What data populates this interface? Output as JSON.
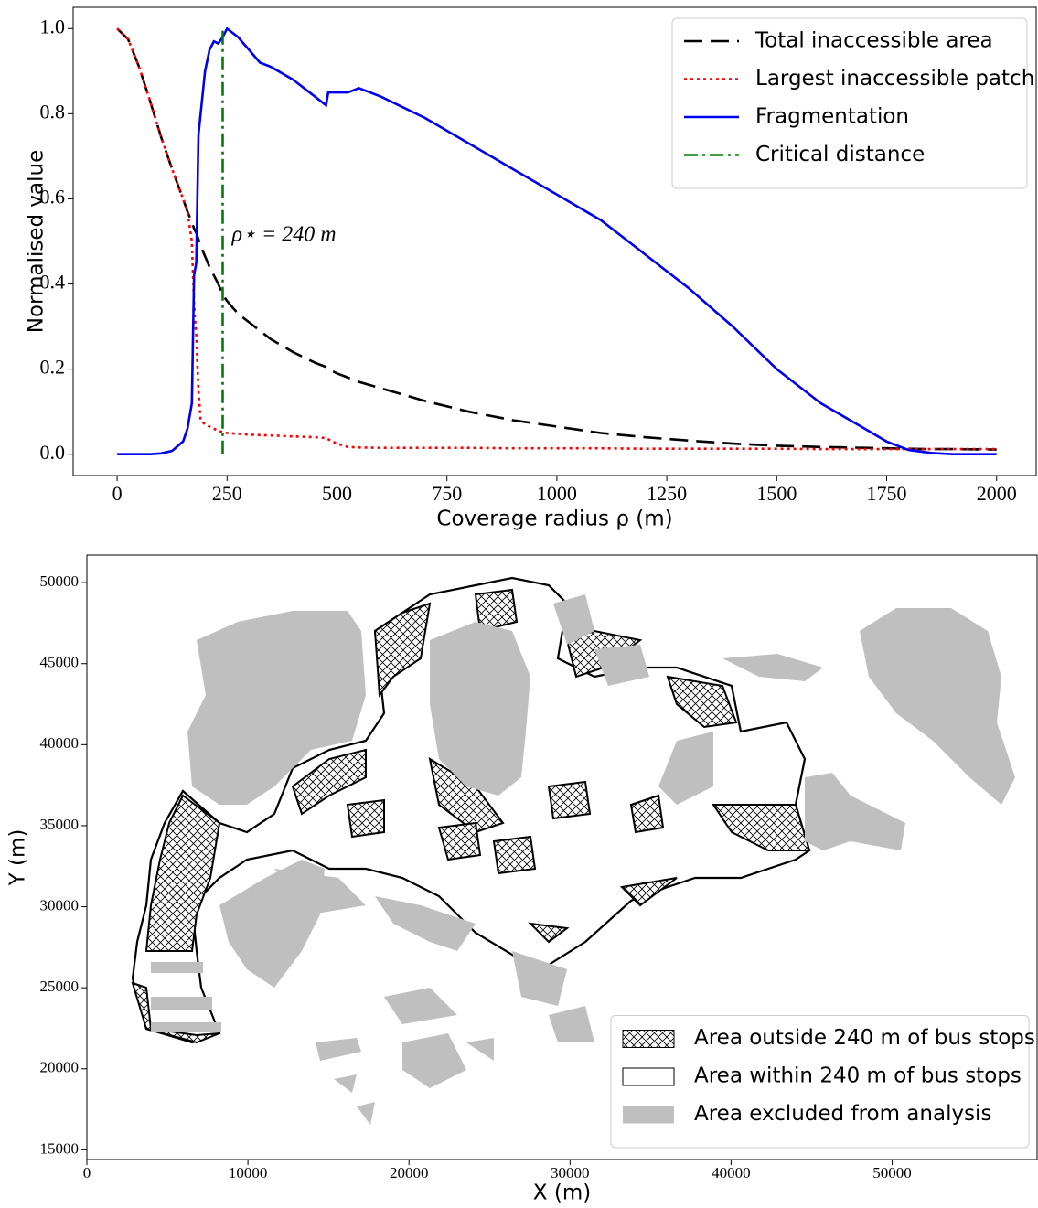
{
  "chart_data": [
    {
      "type": "line",
      "xlabel": "Coverage radius ρ (m)",
      "ylabel": "Normalised value",
      "xlim": [
        -100,
        2090
      ],
      "ylim": [
        -0.05,
        1.05
      ],
      "xticks": [
        0,
        250,
        500,
        750,
        1000,
        1250,
        1500,
        1750,
        2000
      ],
      "yticks": [
        {
          "value": 0,
          "label": "0.0"
        },
        {
          "value": 0.2,
          "label": "0.2"
        },
        {
          "value": 0.4,
          "label": "0.4"
        },
        {
          "value": 0.6,
          "label": "0.6"
        },
        {
          "value": 0.8,
          "label": "0.8"
        },
        {
          "value": 1.0,
          "label": "1.0"
        }
      ],
      "legend": "upper right",
      "annotation": "ρ⋆ = 240 m",
      "series": [
        {
          "name": "Total inaccessible area",
          "color": "#000000",
          "dash": "dashed",
          "x": [
            0,
            25,
            50,
            75,
            100,
            125,
            150,
            160,
            170,
            175,
            180,
            185,
            190,
            200,
            210,
            220,
            230,
            240,
            250,
            275,
            300,
            325,
            350,
            400,
            450,
            475,
            480,
            500,
            525,
            550,
            600,
            700,
            800,
            900,
            1000,
            1100,
            1200,
            1300,
            1400,
            1500,
            1600,
            1700,
            1750,
            1800,
            1850,
            1900,
            2000
          ],
          "values": [
            1.0,
            0.975,
            0.91,
            0.83,
            0.745,
            0.67,
            0.6,
            0.57,
            0.545,
            0.53,
            0.52,
            0.505,
            0.49,
            0.465,
            0.44,
            0.42,
            0.4,
            0.375,
            0.36,
            0.33,
            0.31,
            0.29,
            0.27,
            0.24,
            0.215,
            0.205,
            0.2,
            0.19,
            0.18,
            0.17,
            0.155,
            0.125,
            0.1,
            0.08,
            0.065,
            0.05,
            0.04,
            0.032,
            0.025,
            0.02,
            0.017,
            0.015,
            0.014,
            0.013,
            0.012,
            0.012,
            0.011
          ]
        },
        {
          "name": "Largest inaccessible patch",
          "color": "#ff0000",
          "dash": "dotted",
          "x": [
            0,
            25,
            50,
            75,
            100,
            125,
            150,
            160,
            170,
            175,
            180,
            185,
            190,
            200,
            210,
            220,
            230,
            240,
            250,
            275,
            300,
            325,
            350,
            400,
            450,
            475,
            480,
            500,
            525,
            550,
            600,
            700,
            800,
            900,
            1000,
            1100,
            1200,
            1300,
            1400,
            1500,
            1600,
            1700,
            1750,
            1800,
            1850,
            1900,
            2000
          ],
          "values": [
            1.0,
            0.975,
            0.91,
            0.83,
            0.745,
            0.67,
            0.6,
            0.57,
            0.5,
            0.35,
            0.28,
            0.15,
            0.08,
            0.07,
            0.065,
            0.06,
            0.055,
            0.052,
            0.05,
            0.048,
            0.046,
            0.045,
            0.044,
            0.042,
            0.04,
            0.038,
            0.035,
            0.025,
            0.017,
            0.016,
            0.015,
            0.015,
            0.015,
            0.014,
            0.014,
            0.014,
            0.013,
            0.013,
            0.013,
            0.013,
            0.012,
            0.012,
            0.012,
            0.012,
            0.012,
            0.012,
            0.012
          ]
        },
        {
          "name": "Fragmentation",
          "color": "#0000ee",
          "dash": "solid",
          "x": [
            0,
            25,
            50,
            75,
            100,
            125,
            150,
            160,
            170,
            175,
            180,
            185,
            190,
            200,
            210,
            220,
            230,
            240,
            250,
            275,
            300,
            325,
            350,
            400,
            450,
            475,
            480,
            500,
            525,
            550,
            600,
            700,
            800,
            900,
            1000,
            1100,
            1200,
            1300,
            1400,
            1500,
            1600,
            1700,
            1750,
            1800,
            1850,
            1900,
            2000
          ],
          "values": [
            0,
            0,
            0,
            0,
            0.002,
            0.008,
            0.03,
            0.06,
            0.12,
            0.42,
            0.45,
            0.75,
            0.8,
            0.9,
            0.95,
            0.97,
            0.965,
            0.98,
            1.0,
            0.98,
            0.95,
            0.92,
            0.91,
            0.88,
            0.84,
            0.82,
            0.85,
            0.85,
            0.85,
            0.86,
            0.84,
            0.79,
            0.73,
            0.67,
            0.61,
            0.55,
            0.47,
            0.39,
            0.3,
            0.2,
            0.12,
            0.06,
            0.03,
            0.01,
            0.003,
            0,
            0
          ]
        },
        {
          "name": "Critical distance",
          "color": "#008000",
          "dash": "dashdot",
          "x": [
            240,
            240
          ],
          "values": [
            0,
            1.0
          ]
        }
      ]
    },
    {
      "type": "map",
      "xlabel": "X (m)",
      "ylabel": "Y (m)",
      "xlim": [
        0,
        59000
      ],
      "ylim": [
        14400,
        51700
      ],
      "xticks": [
        0,
        10000,
        20000,
        30000,
        40000,
        50000
      ],
      "yticks": [
        15000,
        20000,
        25000,
        30000,
        35000,
        40000,
        45000,
        50000
      ],
      "legend": "lower right",
      "legend_entries": [
        {
          "label": "Area outside 240 m of bus stops",
          "color": "#ffffff",
          "hatch": true
        },
        {
          "label": "Area within 240 m of bus stops",
          "color": "#ffffff",
          "hatch": false
        },
        {
          "label": "Area excluded from analysis",
          "color": "#bfbfbf",
          "hatch": false
        }
      ]
    }
  ]
}
